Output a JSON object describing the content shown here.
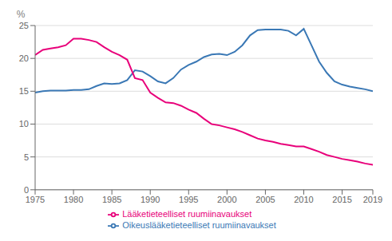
{
  "chart_data": {
    "type": "line",
    "ylabel": "%",
    "x": [
      1975,
      1976,
      1977,
      1978,
      1979,
      1980,
      1981,
      1982,
      1983,
      1984,
      1985,
      1986,
      1987,
      1988,
      1989,
      1990,
      1991,
      1992,
      1993,
      1994,
      1995,
      1996,
      1997,
      1998,
      1999,
      2000,
      2001,
      2002,
      2003,
      2004,
      2005,
      2006,
      2007,
      2008,
      2009,
      2010,
      2011,
      2012,
      2013,
      2014,
      2015,
      2016,
      2017,
      2018,
      2019
    ],
    "series": [
      {
        "name": "Oikeuslääketieteelliset ruumiinavaukset",
        "color": "#3a78b5",
        "values": [
          14.8,
          15.0,
          15.1,
          15.1,
          15.1,
          15.2,
          15.2,
          15.3,
          15.8,
          16.2,
          16.1,
          16.2,
          16.7,
          18.2,
          18.0,
          17.3,
          16.5,
          16.2,
          17.0,
          18.3,
          19.0,
          19.5,
          20.2,
          20.6,
          20.7,
          20.5,
          21.0,
          22.0,
          23.5,
          24.3,
          24.4,
          24.4,
          24.4,
          24.2,
          23.5,
          24.5,
          22.0,
          19.5,
          17.8,
          16.5,
          16.0,
          15.7,
          15.5,
          15.3,
          15.0
        ]
      },
      {
        "name": "Lääketieteelliset ruumiinavaukset",
        "color": "#e8007a",
        "values": [
          20.5,
          21.3,
          21.5,
          21.7,
          22.0,
          23.0,
          23.0,
          22.8,
          22.5,
          21.7,
          21.0,
          20.5,
          19.8,
          17.0,
          16.7,
          14.8,
          14.0,
          13.3,
          13.2,
          12.8,
          12.2,
          11.7,
          10.8,
          10.0,
          9.8,
          9.5,
          9.2,
          8.8,
          8.3,
          7.8,
          7.5,
          7.3,
          7.0,
          6.8,
          6.6,
          6.6,
          6.2,
          5.8,
          5.3,
          5.0,
          4.7,
          4.5,
          4.3,
          4.0,
          3.8
        ]
      }
    ],
    "xlim": [
      1975,
      2019
    ],
    "ylim": [
      0,
      25
    ],
    "xticks": [
      1975,
      1980,
      1985,
      1990,
      1995,
      2000,
      2005,
      2010,
      2015,
      2019
    ],
    "yticks": [
      0,
      5,
      10,
      15,
      20,
      25
    ],
    "grid": true,
    "legend": "bottom"
  }
}
